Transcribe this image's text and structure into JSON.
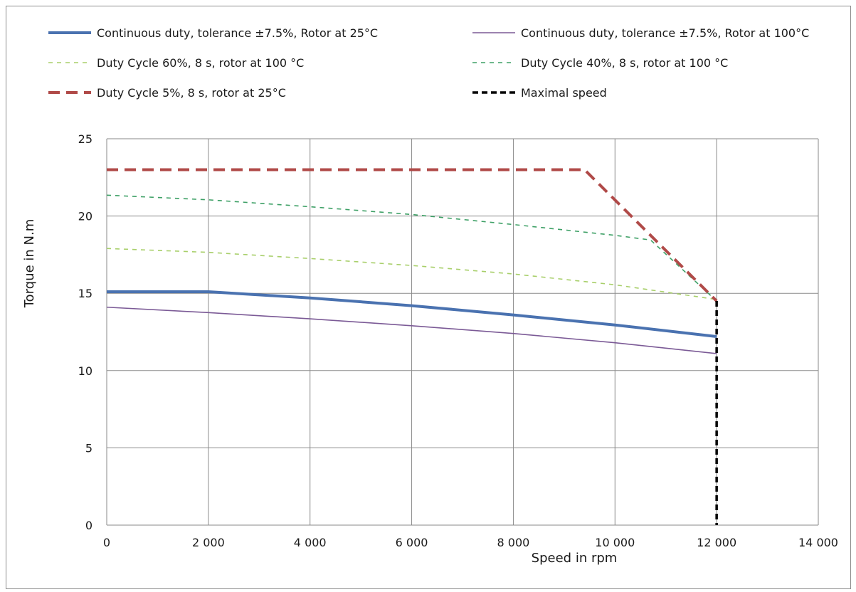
{
  "chart_data": {
    "type": "line",
    "xlabel": "Speed in rpm",
    "ylabel": "Torque in N.m",
    "xlim": [
      0,
      14000
    ],
    "ylim": [
      0,
      25
    ],
    "x_ticks": [
      0,
      2000,
      4000,
      6000,
      8000,
      10000,
      12000,
      14000
    ],
    "x_tick_labels": [
      "0",
      "2 000",
      "4 000",
      "6 000",
      "8 000",
      "10 000",
      "12 000",
      "14 000"
    ],
    "y_ticks": [
      0,
      5,
      10,
      15,
      20,
      25
    ],
    "y_tick_labels": [
      "0",
      "5",
      "10",
      "15",
      "20",
      "25"
    ],
    "grid": true,
    "legend_position": "top",
    "series": [
      {
        "name": "Continuous duty, tolerance ±7.5%, Rotor at 25°C",
        "color": "#4a72b0",
        "dash": "solid",
        "width": 4,
        "x": [
          0,
          2000,
          4000,
          6000,
          8000,
          10000,
          12000
        ],
        "y": [
          15.1,
          15.1,
          14.7,
          14.2,
          13.6,
          12.95,
          12.2
        ]
      },
      {
        "name": "Continuous duty, tolerance ±7.5%, Rotor at 100°C",
        "color": "#7b5a96",
        "dash": "solid",
        "width": 1.6,
        "x": [
          0,
          2000,
          4000,
          6000,
          8000,
          10000,
          12000
        ],
        "y": [
          14.1,
          13.75,
          13.35,
          12.9,
          12.4,
          11.8,
          11.1
        ]
      },
      {
        "name": "Duty Cycle 60%, 8 s, rotor at 100 °C",
        "color": "#a8cf6a",
        "dash": "short",
        "width": 1.6,
        "x": [
          0,
          2000,
          4000,
          6000,
          8000,
          10000,
          12000
        ],
        "y": [
          17.9,
          17.65,
          17.25,
          16.8,
          16.25,
          15.55,
          14.6
        ]
      },
      {
        "name": "Duty Cycle 40%, 8 s, rotor at 100 °C",
        "color": "#3ea066",
        "dash": "short",
        "width": 1.6,
        "x": [
          0,
          2000,
          4000,
          6000,
          8000,
          10000,
          10700,
          12000
        ],
        "y": [
          21.35,
          21.05,
          20.6,
          20.1,
          19.45,
          18.75,
          18.45,
          14.5
        ]
      },
      {
        "name": "Duty Cycle 5%, 8 s, rotor at 25°C",
        "color": "#b04a48",
        "dash": "long",
        "width": 4,
        "x": [
          0,
          2000,
          4000,
          6000,
          8000,
          9400,
          12000
        ],
        "y": [
          23,
          23,
          23,
          23,
          23,
          23,
          14.5
        ]
      },
      {
        "name": "Maximal speed",
        "color": "#000000",
        "dash": "medium",
        "width": 3.5,
        "x": [
          12000,
          12000
        ],
        "y": [
          14.5,
          0
        ]
      }
    ]
  }
}
